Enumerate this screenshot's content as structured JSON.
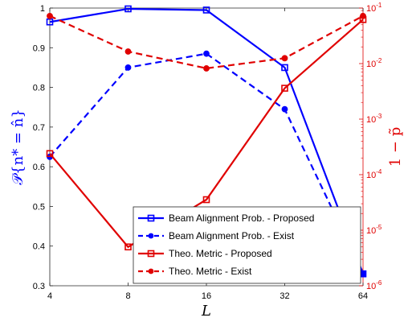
{
  "chart_data": {
    "type": "line",
    "x": [
      4,
      8,
      16,
      32,
      64
    ],
    "x_tick_labels": [
      "4",
      "8",
      "16",
      "32",
      "64"
    ],
    "xscale": "log2",
    "xlim": [
      4,
      64
    ],
    "xlabel": "L",
    "ylabel_left": "𝒫{n* = n̂}",
    "ylabel_right": "1 − p̃",
    "left_axis": {
      "ylim": [
        0.3,
        1.0
      ],
      "ticks": [
        0.3,
        0.4,
        0.5,
        0.6,
        0.7,
        0.8,
        0.9,
        1
      ],
      "tick_labels": [
        "0.3",
        "0.4",
        "0.5",
        "0.6",
        "0.7",
        "0.8",
        "0.9",
        "1"
      ],
      "color": "#0000ff"
    },
    "right_axis": {
      "scale": "log",
      "ylim": [
        1e-06,
        0.1
      ],
      "tick_values": [
        1e-06,
        1e-05,
        0.0001,
        0.001,
        0.01,
        0.1
      ],
      "tick_exponents": [
        "-6",
        "-5",
        "-4",
        "-3",
        "-2",
        "-1"
      ],
      "tick_base": "10",
      "color": "#e00000"
    },
    "series": [
      {
        "name": "Beam Alignment Prob. - Proposed",
        "axis": "left",
        "color": "#0000ff",
        "dash": "solid",
        "marker": "square",
        "values": [
          0.965,
          0.998,
          0.995,
          0.85,
          0.33
        ]
      },
      {
        "name": "Beam Alignment Prob. - Exist",
        "axis": "left",
        "color": "#0000ff",
        "dash": "dashed",
        "marker": "circle",
        "values": [
          0.625,
          0.85,
          0.885,
          0.745,
          0.33
        ]
      },
      {
        "name": "Theo. Metric - Proposed",
        "axis": "right",
        "color": "#e00000",
        "dash": "solid",
        "marker": "square",
        "values": [
          0.00024,
          5e-06,
          3.55e-05,
          0.0036,
          0.062
        ]
      },
      {
        "name": "Theo. Metric - Exist",
        "axis": "right",
        "color": "#e00000",
        "dash": "dashed",
        "marker": "circle",
        "values": [
          0.072,
          0.0165,
          0.0082,
          0.0125,
          0.072
        ]
      }
    ],
    "legend_position": "lower-right",
    "grid": false
  }
}
